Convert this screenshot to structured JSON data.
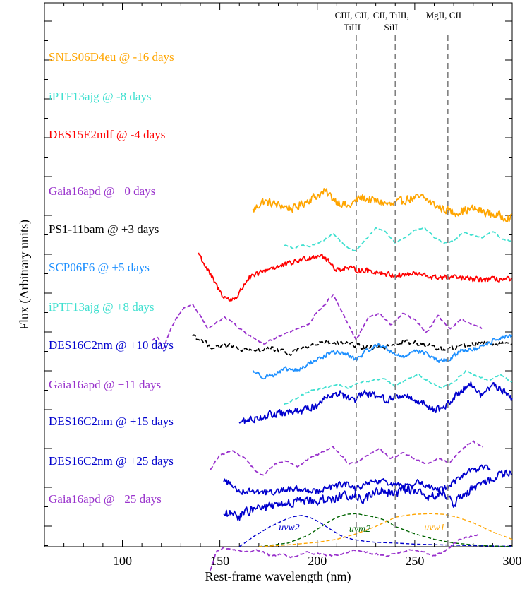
{
  "chart_data": {
    "type": "line",
    "title": "",
    "xlabel": "Rest-frame wavelength (nm)",
    "ylabel": "Flux (Arbitrary units)",
    "xlim": [
      60,
      300
    ],
    "xticks": [
      100,
      150,
      200,
      250,
      300
    ],
    "grid": false,
    "reference_lines": [
      {
        "x": 220,
        "label": "CIII, CII, TiIII"
      },
      {
        "x": 240,
        "label": "CII, TiIII, SiII"
      },
      {
        "x": 267,
        "label": "MgII, CII"
      }
    ],
    "series": [
      {
        "name": "SNLS06D4eu @ -16 days",
        "color": "#FFA500",
        "style": "solid",
        "noise": 0.7,
        "offset": 8.1,
        "x": [
          167,
          172,
          180,
          188,
          196,
          204,
          210,
          216,
          222,
          230,
          238,
          246,
          254,
          262,
          270,
          280,
          290,
          300
        ],
        "y": [
          0.45,
          0.7,
          0.6,
          0.5,
          0.75,
          0.95,
          0.7,
          0.55,
          0.8,
          0.7,
          0.6,
          0.75,
          0.8,
          0.55,
          0.4,
          0.5,
          0.35,
          0.25
        ]
      },
      {
        "name": "iPTF13ajg @ -8 days",
        "color": "#40E0D0",
        "style": "dashed",
        "noise": 0.12,
        "offset": 7.25,
        "x": [
          183,
          188,
          192,
          196,
          200,
          204,
          208,
          212,
          216,
          220,
          225,
          230,
          235,
          240,
          245,
          250,
          255,
          260,
          265,
          270,
          275,
          280,
          285,
          290,
          295,
          300
        ],
        "y": [
          0.4,
          0.3,
          0.4,
          0.35,
          0.45,
          0.55,
          0.7,
          0.5,
          0.3,
          0.25,
          0.55,
          0.85,
          0.75,
          0.45,
          0.6,
          0.8,
          0.85,
          0.6,
          0.45,
          0.5,
          0.75,
          0.65,
          0.6,
          0.75,
          0.55,
          0.5
        ]
      },
      {
        "name": "DES15E2mlf @ -4 days",
        "color": "#FF0000",
        "style": "solid",
        "noise": 0.45,
        "offset": 6.55,
        "x": [
          139,
          143,
          147,
          151,
          155,
          159,
          164,
          170,
          176,
          182,
          188,
          194,
          198,
          202,
          206,
          210,
          215,
          220,
          230,
          240,
          250,
          260,
          270,
          280,
          290,
          300
        ],
        "y": [
          0.9,
          0.5,
          0.15,
          -0.2,
          -0.35,
          -0.25,
          0.2,
          0.35,
          0.5,
          0.55,
          0.65,
          0.75,
          0.8,
          0.85,
          0.65,
          0.45,
          0.5,
          0.45,
          0.4,
          0.3,
          0.35,
          0.25,
          0.25,
          0.2,
          0.2,
          0.2
        ]
      },
      {
        "name": "Gaia16apd @ +0 days",
        "color": "#9932CC",
        "style": "dashed",
        "noise": 0.15,
        "offset": 5.55,
        "x": [
          115,
          118,
          121,
          124,
          128,
          132,
          136,
          140,
          144,
          148,
          152,
          156,
          160,
          166,
          172,
          178,
          184,
          190,
          196,
          200,
          204,
          208,
          212,
          216,
          220,
          226,
          232,
          238,
          244,
          250,
          256,
          262,
          268,
          274,
          280,
          285
        ],
        "y": [
          -0.4,
          -0.3,
          -0.65,
          -0.2,
          0.2,
          0.45,
          0.55,
          0.25,
          -0.1,
          0.05,
          0.2,
          0.1,
          -0.1,
          -0.3,
          -0.5,
          -0.35,
          -0.2,
          -0.1,
          0.05,
          0.35,
          0.55,
          0.8,
          0.4,
          0.0,
          -0.4,
          0.2,
          0.3,
          0.0,
          0.3,
          0.15,
          -0.2,
          0.25,
          -0.1,
          0.15,
          0.0,
          -0.1
        ]
      },
      {
        "name": "PS1-11bam @ +3 days",
        "color": "#000000",
        "style": "dashed",
        "noise": 0.45,
        "offset": 4.9,
        "x": [
          136,
          145,
          155,
          165,
          175,
          185,
          195,
          205,
          215,
          225,
          235,
          245,
          255,
          265,
          275,
          285,
          295,
          300
        ],
        "y": [
          0.4,
          0.1,
          0.1,
          -0.05,
          0.05,
          -0.1,
          0.1,
          0.2,
          0.15,
          0.05,
          0.1,
          0.2,
          0.15,
          0.0,
          0.1,
          0.2,
          0.15,
          0.2
        ]
      },
      {
        "name": "SCP06F6 @ +5 days",
        "color": "#1E90FF",
        "style": "solid",
        "noise": 0.35,
        "offset": 4.05,
        "x": [
          167,
          172,
          178,
          184,
          190,
          196,
          202,
          208,
          214,
          220,
          226,
          232,
          238,
          244,
          250,
          256,
          262,
          268,
          274,
          280,
          286,
          292,
          300
        ],
        "y": [
          0.3,
          0.15,
          0.2,
          0.35,
          0.3,
          0.5,
          0.65,
          0.8,
          0.75,
          0.6,
          0.85,
          1.0,
          0.8,
          0.65,
          0.85,
          0.75,
          0.55,
          0.6,
          0.85,
          0.85,
          0.95,
          1.15,
          1.2
        ]
      },
      {
        "name": "iPTF13ajg @ +8 days",
        "color": "#40E0D0",
        "style": "dashed",
        "noise": 0.15,
        "offset": 3.35,
        "x": [
          183,
          190,
          197,
          204,
          210,
          216,
          222,
          228,
          234,
          240,
          246,
          252,
          258,
          264,
          270,
          276,
          282,
          288,
          294,
          300
        ],
        "y": [
          0.1,
          0.3,
          0.5,
          0.55,
          0.65,
          0.55,
          0.7,
          0.75,
          0.8,
          0.6,
          0.8,
          0.9,
          0.7,
          0.55,
          0.7,
          1.0,
          0.85,
          0.75,
          0.9,
          0.7
        ]
      },
      {
        "name": "DES16C2nm @ +10 days",
        "color": "#0000CD",
        "style": "solid",
        "noise": 0.6,
        "offset": 2.5,
        "x": [
          160,
          168,
          176,
          184,
          192,
          200,
          206,
          212,
          218,
          224,
          230,
          236,
          242,
          248,
          254,
          260,
          266,
          272,
          278,
          284,
          290,
          296,
          300
        ],
        "y": [
          0.5,
          0.6,
          0.7,
          0.75,
          0.8,
          0.95,
          1.25,
          1.25,
          1.05,
          1.25,
          1.2,
          1.1,
          1.2,
          1.15,
          1.0,
          0.85,
          0.9,
          1.25,
          1.55,
          1.2,
          1.5,
          1.3,
          1.1
        ]
      },
      {
        "name": "Gaia16apd @ +11 days",
        "color": "#9932CC",
        "style": "dashed",
        "noise": 0.15,
        "offset": 1.7,
        "x": [
          145,
          150,
          156,
          162,
          168,
          172,
          178,
          184,
          190,
          196,
          202,
          208,
          212,
          216,
          220,
          226,
          232,
          238,
          244,
          250,
          256,
          262,
          268,
          274,
          280,
          285
        ],
        "y": [
          0.05,
          0.45,
          0.55,
          0.4,
          0.05,
          -0.1,
          0.2,
          0.3,
          0.15,
          0.35,
          0.5,
          0.65,
          0.45,
          0.2,
          0.25,
          0.45,
          0.6,
          0.35,
          0.5,
          0.35,
          0.2,
          0.35,
          0.25,
          0.6,
          0.8,
          0.65
        ]
      },
      {
        "name": "DES16C2nm @ +15 days",
        "color": "#0000CD",
        "style": "solid",
        "noise": 0.5,
        "offset": 0.9,
        "x": [
          152,
          160,
          168,
          176,
          184,
          192,
          200,
          208,
          214,
          220,
          226,
          232,
          238,
          244,
          250,
          256,
          262,
          268,
          274,
          280,
          286,
          289
        ],
        "y": [
          0.6,
          0.3,
          0.3,
          0.25,
          0.35,
          0.35,
          0.3,
          0.4,
          0.5,
          0.35,
          0.5,
          0.55,
          0.5,
          0.4,
          0.55,
          0.45,
          0.3,
          0.45,
          0.7,
          0.85,
          0.95,
          0.8
        ]
      },
      {
        "name": "DES16C2nm @ +25 days",
        "color": "#0000CD",
        "style": "solid",
        "noise": 0.75,
        "offset": -0.05,
        "x": [
          152,
          160,
          168,
          176,
          184,
          192,
          200,
          208,
          216,
          224,
          232,
          240,
          248,
          256,
          264,
          270,
          276,
          282,
          288,
          294,
          300
        ],
        "y": [
          0.65,
          0.6,
          0.8,
          0.85,
          0.9,
          1.0,
          1.0,
          1.05,
          1.15,
          1.05,
          1.25,
          1.2,
          1.3,
          1.1,
          1.2,
          0.9,
          1.2,
          1.35,
          1.55,
          1.65,
          1.7
        ]
      },
      {
        "name": "Gaia16apd @ +25 days",
        "color": "#9932CC",
        "style": "dashed",
        "noise": 0.15,
        "offset": -0.35,
        "x": [
          145,
          148,
          152,
          158,
          164,
          170,
          176,
          182,
          188,
          194,
          200,
          206,
          212,
          218,
          224,
          230,
          236,
          242,
          248,
          254,
          260,
          266,
          272,
          278,
          284
        ],
        "y": [
          -0.55,
          -0.05,
          0.05,
          0.0,
          -0.05,
          0.0,
          -0.15,
          -0.1,
          -0.2,
          -0.05,
          -0.1,
          -0.15,
          -0.1,
          0.0,
          -0.05,
          -0.1,
          -0.15,
          -0.05,
          0.0,
          -0.05,
          -0.15,
          0.0,
          0.25,
          0.35,
          0.4
        ]
      }
    ],
    "filters": [
      {
        "name": "uvw2",
        "color": "#0000CD",
        "x": [
          160,
          168,
          176,
          184,
          188,
          192,
          196,
          200,
          206,
          212,
          218,
          224,
          230,
          240,
          250,
          270,
          290,
          300
        ],
        "y": [
          0.0,
          0.3,
          0.55,
          0.75,
          0.82,
          0.85,
          0.8,
          0.7,
          0.5,
          0.3,
          0.2,
          0.15,
          0.12,
          0.1,
          0.07,
          0.04,
          0.02,
          0.01
        ]
      },
      {
        "name": "uvm2",
        "color": "#006400",
        "x": [
          170,
          185,
          195,
          205,
          210,
          215,
          220,
          225,
          230,
          235,
          240,
          250,
          260,
          270,
          280,
          290,
          300
        ],
        "y": [
          0.0,
          0.1,
          0.3,
          0.65,
          0.8,
          0.88,
          0.9,
          0.85,
          0.8,
          0.72,
          0.55,
          0.35,
          0.2,
          0.1,
          0.05,
          0.02,
          0.0
        ]
      },
      {
        "name": "uvw1",
        "color": "#FFA500",
        "x": [
          170,
          185,
          200,
          210,
          220,
          230,
          236,
          240,
          245,
          250,
          258,
          265,
          272,
          280,
          290,
          300
        ],
        "y": [
          0.0,
          0.05,
          0.12,
          0.2,
          0.35,
          0.55,
          0.7,
          0.8,
          0.85,
          0.88,
          0.9,
          0.88,
          0.8,
          0.65,
          0.4,
          0.2
        ]
      }
    ]
  }
}
